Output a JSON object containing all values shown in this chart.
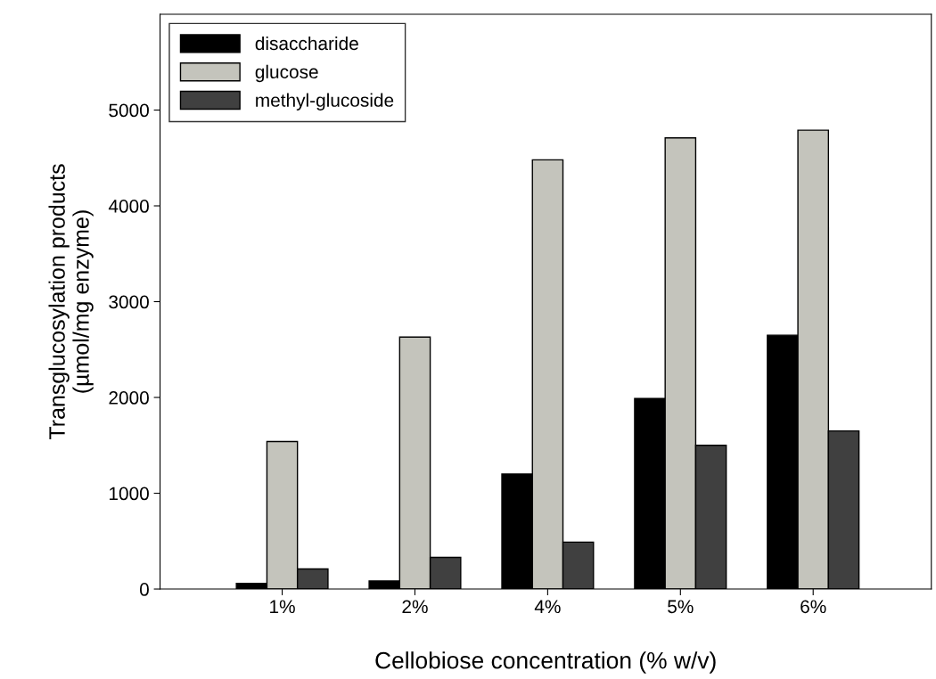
{
  "chart_data": {
    "type": "bar",
    "xlabel": "Cellobiose concentration (% w/v)",
    "ylabel": "Transglucosylation products\n(µmol/mg enzyme)",
    "categories": [
      "1%",
      "2%",
      "4%",
      "5%",
      "6%"
    ],
    "series": [
      {
        "name": "disaccharide",
        "color": "#000000",
        "values": [
          60,
          85,
          1200,
          1990,
          2650
        ]
      },
      {
        "name": "glucose",
        "color": "#c4c4bc",
        "values": [
          1540,
          2630,
          4480,
          4710,
          4790
        ]
      },
      {
        "name": "methyl-glucoside",
        "color": "#404040",
        "values": [
          210,
          330,
          490,
          1500,
          1650
        ]
      }
    ],
    "ylim": [
      0,
      6000
    ],
    "yticks": [
      0,
      1000,
      2000,
      3000,
      4000,
      5000
    ],
    "grid": false,
    "legend": "top left"
  }
}
